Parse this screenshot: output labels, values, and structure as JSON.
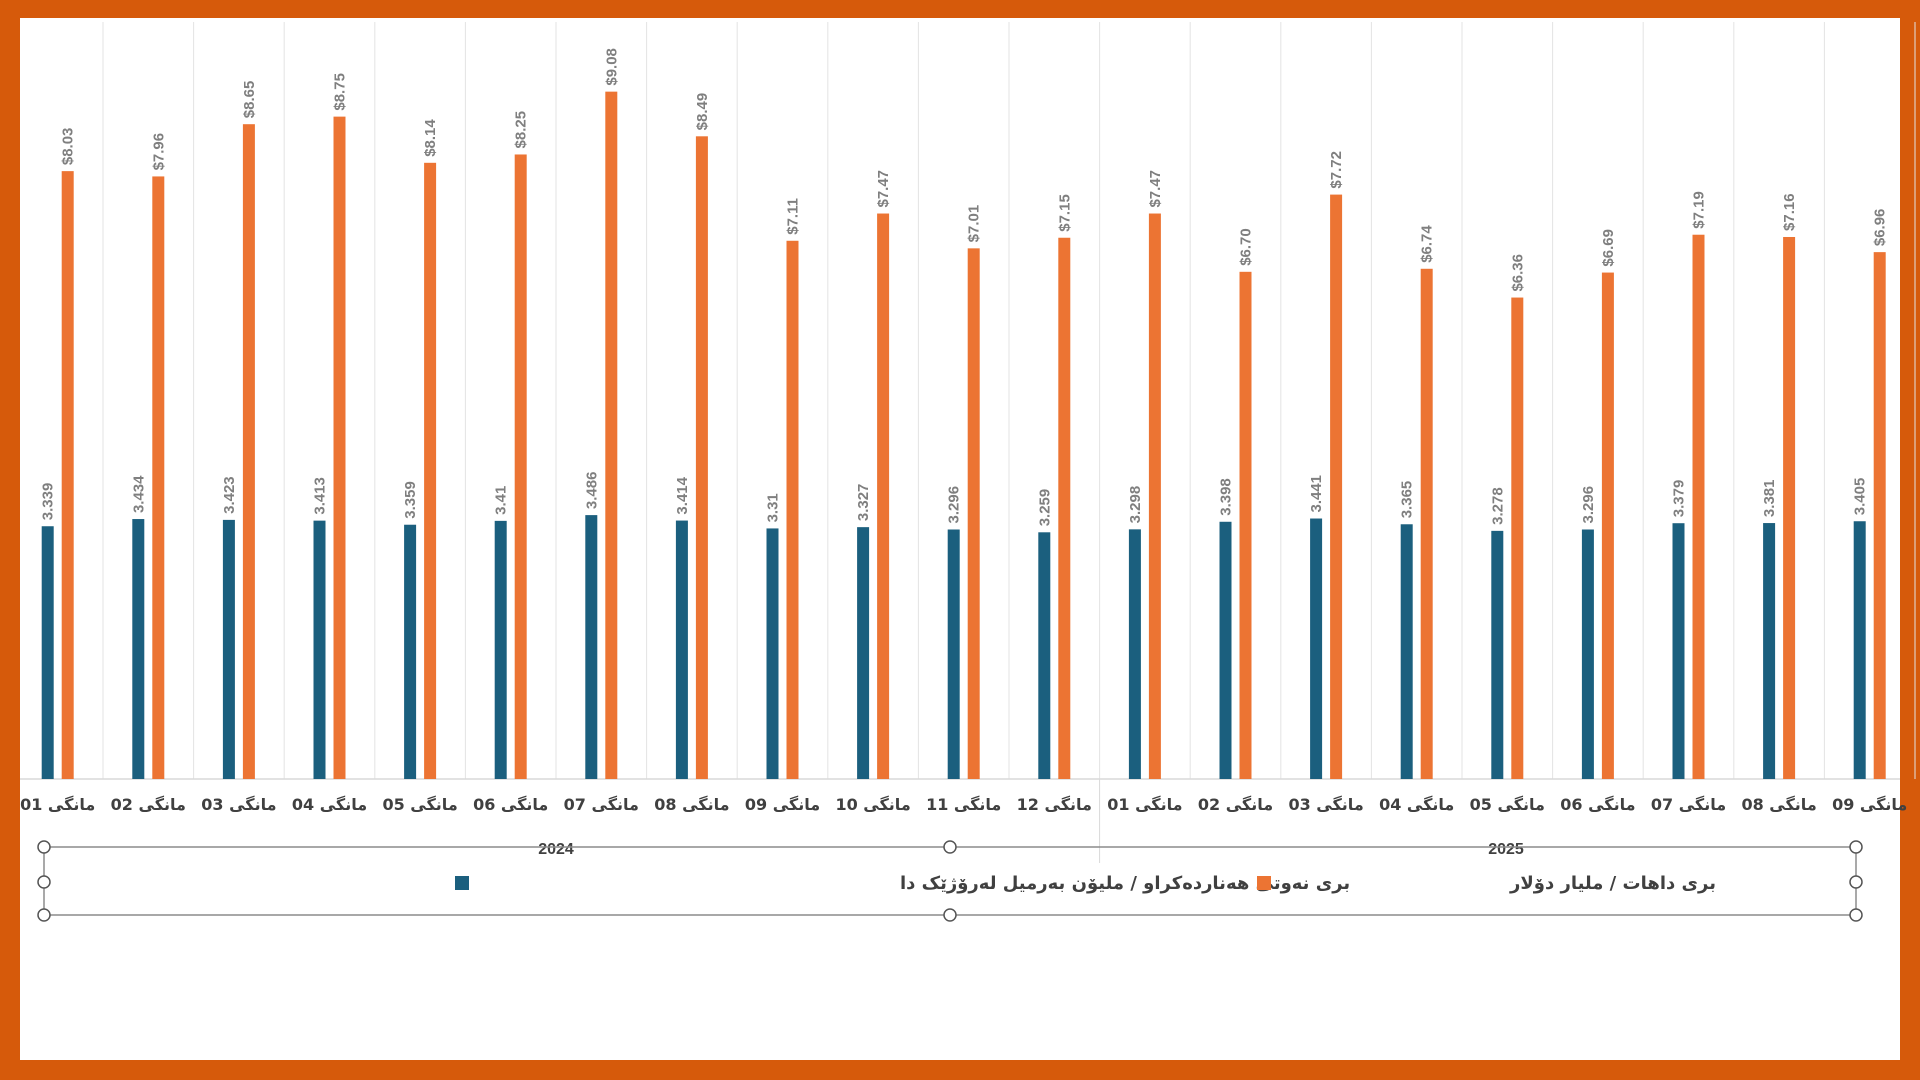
{
  "chart_data": {
    "type": "bar",
    "title": "",
    "xlabel": "",
    "ylabel": "",
    "ylim": [
      0,
      10
    ],
    "grid": "vertical category separators",
    "legend_placement": "bottom",
    "categories": [
      "مانگی 01",
      "مانگی 02",
      "مانگی 03",
      "مانگی 04",
      "مانگی 05",
      "مانگی 06",
      "مانگی 07",
      "مانگی 08",
      "مانگی 09",
      "مانگی 10",
      "مانگی 11",
      "مانگی 12",
      "مانگی 01",
      "مانگی 02",
      "مانگی 03",
      "مانگی 04",
      "مانگی 05",
      "مانگی 06",
      "مانگی 07",
      "مانگی 08",
      "مانگی 09"
    ],
    "groups": [
      {
        "label": "2024",
        "count": 12
      },
      {
        "label": "2025",
        "count": 9
      }
    ],
    "series": [
      {
        "name": "بری نەوتی هەناردەکراو / ملیۆن بەرمیل لەرۆژێک دا",
        "color": "#1B5F7E",
        "values": [
          3.339,
          3.434,
          3.423,
          3.413,
          3.359,
          3.41,
          3.486,
          3.414,
          3.31,
          3.327,
          3.296,
          3.259,
          3.298,
          3.398,
          3.441,
          3.365,
          3.278,
          3.296,
          3.379,
          3.381,
          3.405
        ],
        "labels": [
          "3.339",
          "3.434",
          "3.423",
          "3.413",
          "3.359",
          "3.41",
          "3.486",
          "3.414",
          "3.31",
          "3.327",
          "3.296",
          "3.259",
          "3.298",
          "3.398",
          "3.441",
          "3.365",
          "3.278",
          "3.296",
          "3.379",
          "3.381",
          "3.405"
        ]
      },
      {
        "name": "بری داهات / ملیار دۆلار",
        "color": "#EC7433",
        "values": [
          8.03,
          7.96,
          8.65,
          8.75,
          8.14,
          8.25,
          9.08,
          8.49,
          7.11,
          7.47,
          7.01,
          7.15,
          7.47,
          6.7,
          7.72,
          6.74,
          6.36,
          6.69,
          7.19,
          7.16,
          6.96
        ],
        "labels": [
          "$8.03",
          "$7.96",
          "$8.65",
          "$8.75",
          "$8.14",
          "$8.25",
          "$9.08",
          "$8.49",
          "$7.11",
          "$7.47",
          "$7.01",
          "$7.15",
          "$7.47",
          "$6.70",
          "$7.72",
          "$6.74",
          "$6.36",
          "$6.69",
          "$7.19",
          "$7.16",
          "$6.96"
        ]
      }
    ]
  },
  "colors": {
    "frame": "#D65A0B",
    "label": "#7F7F7F",
    "axis_text": "#404040"
  }
}
